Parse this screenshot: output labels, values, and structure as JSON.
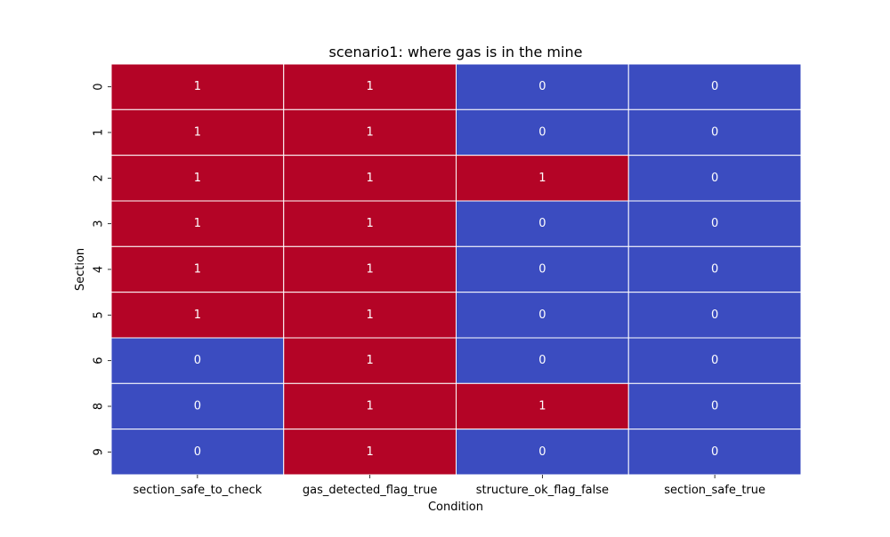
{
  "chart_data": {
    "type": "heatmap",
    "title": "scenario1: where gas is in the mine",
    "xlabel": "Condition",
    "ylabel": "Section",
    "columns": [
      "section_safe_to_check",
      "gas_detected_flag_true",
      "structure_ok_flag_false",
      "section_safe_true"
    ],
    "rows": [
      "0",
      "1",
      "2",
      "3",
      "4",
      "5",
      "6",
      "8",
      "9"
    ],
    "values": [
      [
        1,
        1,
        0,
        0
      ],
      [
        1,
        1,
        0,
        0
      ],
      [
        1,
        1,
        1,
        0
      ],
      [
        1,
        1,
        0,
        0
      ],
      [
        1,
        1,
        0,
        0
      ],
      [
        1,
        1,
        0,
        0
      ],
      [
        0,
        1,
        0,
        0
      ],
      [
        0,
        1,
        1,
        0
      ],
      [
        0,
        1,
        0,
        0
      ]
    ],
    "value_range": [
      0,
      1
    ],
    "colormap": {
      "low": "#3b4cc0",
      "high": "#b40426"
    },
    "annotations": true,
    "colorbar": false,
    "cell_separator_color": "#ffffff",
    "annotation_color": "#ffffff"
  }
}
